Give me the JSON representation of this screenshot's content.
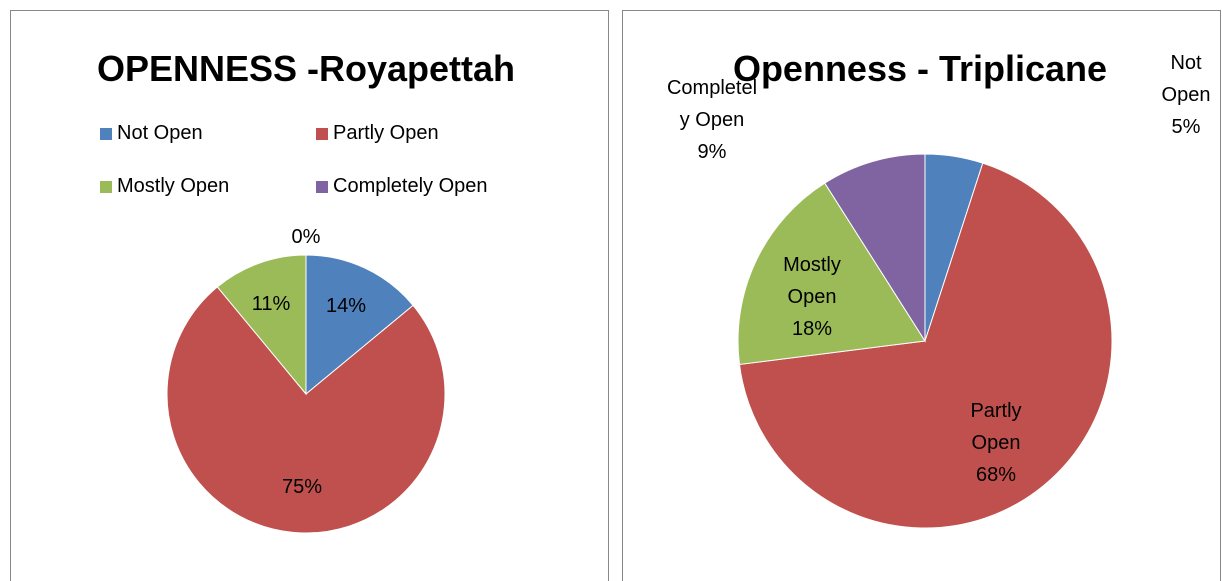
{
  "chart_data": [
    {
      "type": "pie",
      "title": "OPENNESS -Royapettah",
      "categories": [
        "Not Open",
        "Partly Open",
        "Mostly Open",
        "Completely Open"
      ],
      "values": [
        14,
        75,
        11,
        0
      ],
      "value_labels": [
        "14%",
        "75%",
        "11%",
        "0%"
      ],
      "colors": [
        "#4f81bd",
        "#c0504d",
        "#9bbb59",
        "#8064a2"
      ],
      "legend": "top"
    },
    {
      "type": "pie",
      "title": "Openness - Triplicane",
      "categories": [
        "Not Open",
        "Partly Open",
        "Mostly Open",
        "Completely Open"
      ],
      "values": [
        5,
        68,
        18,
        9
      ],
      "value_labels": [
        "5%",
        "68%",
        "18%",
        "9%"
      ],
      "colors": [
        "#4f81bd",
        "#c0504d",
        "#9bbb59",
        "#8064a2"
      ]
    }
  ]
}
